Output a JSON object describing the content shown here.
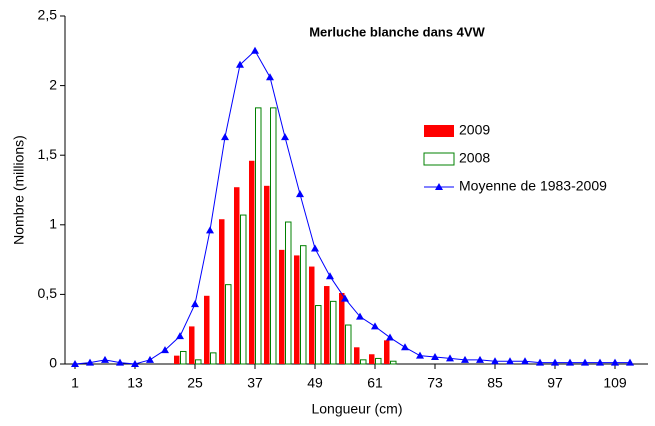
{
  "chart_data": {
    "type": "bar_line",
    "title": "Merluche blanche dans 4VW",
    "xlabel": "Longueur (cm)",
    "ylabel": "Nombre (millions)",
    "x": [
      1,
      4,
      7,
      10,
      13,
      16,
      19,
      22,
      25,
      28,
      31,
      34,
      37,
      40,
      43,
      46,
      49,
      52,
      55,
      58,
      61,
      64,
      67,
      70,
      73,
      76,
      79,
      82,
      85,
      88,
      91,
      94,
      97,
      100,
      103,
      106,
      109,
      112
    ],
    "series": [
      {
        "name": "2009",
        "kind": "bar",
        "color": "#ff0000",
        "values": [
          0,
          0,
          0,
          0,
          0,
          0,
          0,
          0.06,
          0.27,
          0.49,
          1.04,
          1.27,
          1.46,
          1.28,
          0.82,
          0.78,
          0.7,
          0.56,
          0.51,
          0.12,
          0.07,
          0.17,
          0,
          0,
          0,
          0,
          0,
          0,
          0,
          0,
          0,
          0,
          0,
          0,
          0,
          0,
          0,
          0
        ]
      },
      {
        "name": "2008",
        "kind": "bar-outline",
        "color": "#008000",
        "values": [
          0,
          0,
          0,
          0,
          0,
          0,
          0,
          0.09,
          0.03,
          0.08,
          0.57,
          1.07,
          1.84,
          1.84,
          1.02,
          0.85,
          0.42,
          0.45,
          0.28,
          0.03,
          0.04,
          0.02,
          0,
          0,
          0,
          0,
          0,
          0,
          0,
          0,
          0,
          0,
          0,
          0,
          0,
          0,
          0,
          0
        ]
      },
      {
        "name": "Moyenne de 1983-2009",
        "kind": "line",
        "color": "#0000ff",
        "values": [
          0,
          0.01,
          0.03,
          0.01,
          0,
          0.03,
          0.1,
          0.2,
          0.43,
          0.96,
          1.63,
          2.15,
          2.25,
          2.06,
          1.63,
          1.22,
          0.83,
          0.63,
          0.47,
          0.34,
          0.27,
          0.19,
          0.12,
          0.06,
          0.05,
          0.04,
          0.03,
          0.03,
          0.02,
          0.02,
          0.02,
          0.01,
          0.01,
          0.01,
          0.01,
          0.01,
          0.01,
          0.01
        ]
      }
    ],
    "xlim": [
      -1,
      115.6
    ],
    "xticks": [
      1,
      13,
      25,
      37,
      49,
      61,
      73,
      85,
      97,
      109
    ],
    "ylim": [
      0,
      2.5
    ],
    "yticks": [
      0,
      {
        "value": 0.5,
        "label": "0,5"
      },
      1,
      {
        "value": 1.5,
        "label": "1,5"
      },
      2,
      {
        "value": 2.5,
        "label": "2,5"
      }
    ],
    "legend": "right"
  }
}
